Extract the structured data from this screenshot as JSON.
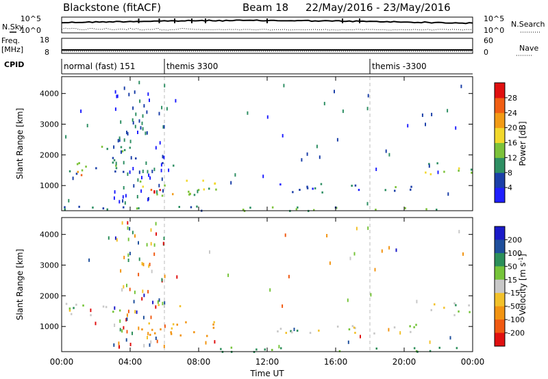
{
  "header": {
    "station": "Blackstone (fitACF)",
    "beam": "Beam 18",
    "date_range": "22/May/2016 - 23/May/2016"
  },
  "top_panels": {
    "nsky_label": "N.Sky",
    "nsky_ticks": [
      "10^5",
      "10^0"
    ],
    "nsearch_label": "N.Search",
    "nsearch_ticks": [
      "10^5",
      "10^0"
    ],
    "freq_label": "Freq.",
    "freq_unit": "[MHz]",
    "freq_ticks": [
      "18",
      "8"
    ],
    "nave_label": "Nave",
    "nave_ticks": [
      "60",
      "0"
    ],
    "cpid_label": "CPID"
  },
  "cpid_segments": [
    {
      "label": "normal (fast) 151",
      "start_hour": 0
    },
    {
      "label": "themis 3300",
      "start_hour": 6
    },
    {
      "label": "themis -3300",
      "start_hour": 18
    }
  ],
  "x_axis": {
    "label": "Time UT",
    "ticks": [
      "00:00",
      "04:00",
      "08:00",
      "12:00",
      "16:00",
      "20:00",
      "00:00"
    ],
    "range_hours": [
      0,
      24
    ]
  },
  "y_axis": {
    "label": "Slant Range [km]",
    "ticks": [
      "1000",
      "2000",
      "3000",
      "4000"
    ],
    "range": [
      180,
      4550
    ]
  },
  "power_colorbar": {
    "label": "Power [dB]",
    "ticks": [
      "4",
      "8",
      "12",
      "16",
      "20",
      "24",
      "28"
    ],
    "colors": [
      "#1f1fff",
      "#1b3fa8",
      "#2e8f63",
      "#7cc23a",
      "#f2d82c",
      "#f29b16",
      "#f15f14",
      "#e01010"
    ]
  },
  "velocity_colorbar": {
    "label_text": "Velocity [m s",
    "label_sup": "-1",
    "label_end": "]",
    "ticks": [
      "200",
      "100",
      "50",
      "15",
      "-15",
      "-50",
      "-100",
      "-200"
    ],
    "colors": [
      "#1a1ac8",
      "#1f4f9c",
      "#2c8f5a",
      "#76c43a",
      "#c8c8c8",
      "#f2c12a",
      "#f29412",
      "#f05a12",
      "#e01010"
    ]
  },
  "chart_data": {
    "type": "heatmap",
    "title": "Blackstone (fitACF) Beam 18 22/May/2016 - 23/May/2016",
    "xlabel": "Time UT",
    "ylabel": "Slant Range [km]",
    "xlim": [
      0,
      24
    ],
    "ylim": [
      180,
      4550
    ],
    "panels": [
      {
        "name": "Power",
        "colorbar_label": "Power [dB]",
        "regions": [
          {
            "x": [
              0.1,
              4.0
            ],
            "y": [
              1400,
              1800
            ],
            "value_db": 10
          },
          {
            "x": [
              0.2,
              1.8
            ],
            "y": [
              1350,
              1550
            ],
            "value_db": 22
          },
          {
            "x": [
              2.2,
              4.8
            ],
            "y": [
              1800,
              2300
            ],
            "value_db": 10
          },
          {
            "x": [
              4.3,
              9.0
            ],
            "y": [
              700,
              1200
            ],
            "value_db": 16
          },
          {
            "x": [
              5.0,
              8.5
            ],
            "y": [
              750,
              950
            ],
            "value_db": 26
          },
          {
            "x": [
              5.5,
              7.0
            ],
            "y": [
              1650,
              1800
            ],
            "value_db": 12
          },
          {
            "x": [
              12.5,
              17.5
            ],
            "y": [
              800,
              1100
            ],
            "value_db": 8
          },
          {
            "x": [
              17.5,
              21.0
            ],
            "y": [
              800,
              1000
            ],
            "value_db": 8
          },
          {
            "x": [
              21.0,
              24.0
            ],
            "y": [
              1400,
              1800
            ],
            "value_db": 14
          },
          {
            "x": [
              0.0,
              24.0
            ],
            "y": [
              200,
              350
            ],
            "value_db": 10
          }
        ]
      },
      {
        "name": "Velocity",
        "colorbar_label": "Velocity [m s-1]",
        "regions": [
          {
            "x": [
              0.1,
              4.0
            ],
            "y": [
              1400,
              1800
            ],
            "value_ms": 0
          },
          {
            "x": [
              4.3,
              9.0
            ],
            "y": [
              700,
              1200
            ],
            "value_ms": -60
          },
          {
            "x": [
              5.5,
              7.0
            ],
            "y": [
              1650,
              1800
            ],
            "value_ms": -60
          },
          {
            "x": [
              12.5,
              21.0
            ],
            "y": [
              800,
              1100
            ],
            "value_ms": 0
          },
          {
            "x": [
              21.0,
              24.0
            ],
            "y": [
              1400,
              1800
            ],
            "value_ms": 0
          },
          {
            "x": [
              9.0,
              24.0
            ],
            "y": [
              200,
              350
            ],
            "value_ms": 30
          }
        ]
      }
    ]
  }
}
